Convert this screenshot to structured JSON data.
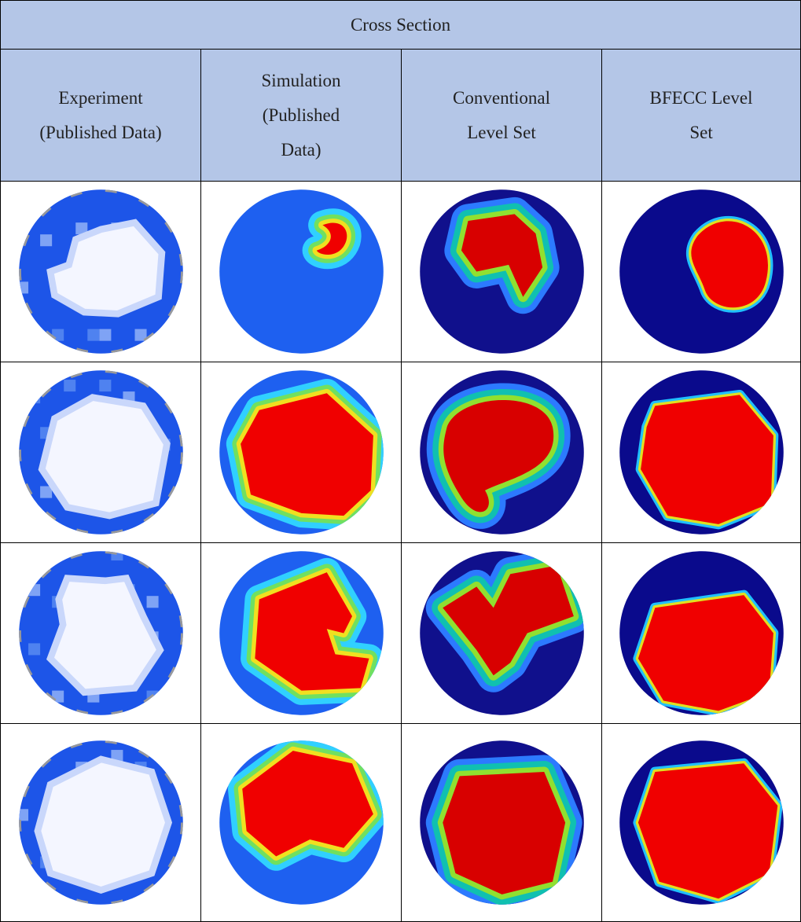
{
  "table": {
    "title": "Cross Section",
    "columns": [
      [
        "Experiment",
        "(Published Data)"
      ],
      [
        "Simulation",
        "(Published",
        "Data)"
      ],
      [
        "Conventional",
        "Level Set"
      ],
      [
        "BFECC Level",
        "Set"
      ]
    ]
  }
}
